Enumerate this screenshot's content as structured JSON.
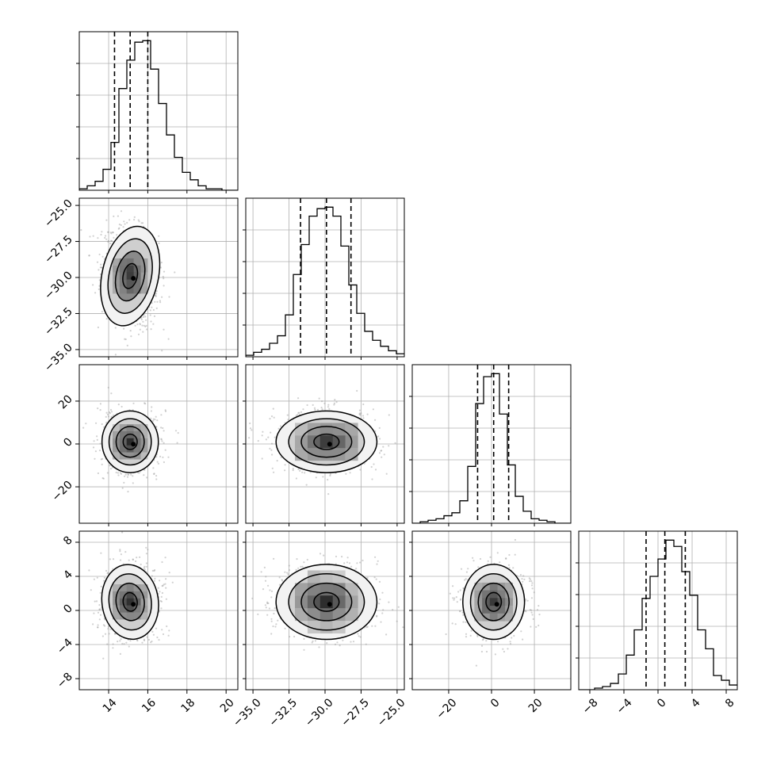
{
  "chart_data": {
    "type": "corner",
    "colors": {
      "line": "#000000",
      "grid": "#b0b0b0",
      "scatter": "#9a9a9a"
    },
    "parameters": [
      {
        "name": "",
        "range": [
          12.5,
          20.6
        ],
        "ticks": [
          14,
          16,
          18,
          20
        ],
        "tick_labels": [
          "14",
          "16",
          "18",
          "20"
        ],
        "quantiles": [
          14.3,
          15.1,
          16.0
        ],
        "mean": 15.1,
        "sd": 0.72,
        "hist": {
          "edges_start": 12.5,
          "bin_width": 0.405,
          "counts": [
            0.01,
            0.03,
            0.06,
            0.14,
            0.32,
            0.68,
            0.87,
            0.99,
            1.0,
            0.81,
            0.58,
            0.37,
            0.22,
            0.12,
            0.07,
            0.03,
            0.01,
            0.01,
            0.0,
            0.0
          ]
        }
      },
      {
        "name": "",
        "range": [
          -35.5,
          -24.5
        ],
        "ticks": [
          -35.0,
          -32.5,
          -30.0,
          -27.5,
          -25.0
        ],
        "tick_labels": [
          "−35.0",
          "−32.5",
          "−30.0",
          "−27.5",
          "−25.0"
        ],
        "quantiles": [
          -31.7,
          -29.9,
          -28.2
        ],
        "mean": -29.9,
        "sd": 1.75,
        "hist": {
          "edges_start": -35.5,
          "bin_width": 0.55,
          "counts": [
            0.01,
            0.03,
            0.05,
            0.09,
            0.14,
            0.28,
            0.55,
            0.75,
            0.94,
            0.99,
            1.0,
            0.94,
            0.74,
            0.48,
            0.29,
            0.17,
            0.11,
            0.07,
            0.04,
            0.02
          ]
        }
      },
      {
        "name": "",
        "range": [
          -37,
          37
        ],
        "ticks": [
          -20,
          0,
          20
        ],
        "tick_labels": [
          "−20",
          "0",
          "20"
        ],
        "quantiles": [
          -6.5,
          1.0,
          8.0
        ],
        "mean": 1.0,
        "sd": 7.2,
        "hist": {
          "edges_start": -37,
          "bin_width": 3.7,
          "counts": [
            0.0,
            0.01,
            0.02,
            0.03,
            0.05,
            0.07,
            0.15,
            0.38,
            0.8,
            0.98,
            1.0,
            0.73,
            0.39,
            0.18,
            0.08,
            0.03,
            0.02,
            0.01,
            0.0,
            0.0
          ]
        }
      },
      {
        "name": "",
        "range": [
          -9.3,
          9.3
        ],
        "ticks": [
          -8,
          -4,
          0,
          4,
          8
        ],
        "tick_labels": [
          "−8",
          "−4",
          "0",
          "4",
          "8"
        ],
        "quantiles": [
          -1.4,
          0.8,
          3.2
        ],
        "mean": 1.0,
        "sd": 2.2,
        "hist": {
          "edges_start": -9.3,
          "bin_width": 0.93,
          "counts": [
            0.0,
            0.0,
            0.01,
            0.02,
            0.04,
            0.1,
            0.22,
            0.38,
            0.58,
            0.72,
            0.83,
            0.95,
            0.91,
            0.75,
            0.6,
            0.38,
            0.26,
            0.09,
            0.06,
            0.03
          ]
        }
      }
    ],
    "correlations": [
      {
        "pair": [
          1,
          0
        ],
        "rho": -0.2
      },
      {
        "pair": [
          2,
          0
        ],
        "rho": 0.0
      },
      {
        "pair": [
          2,
          1
        ],
        "rho": 0.0
      },
      {
        "pair": [
          3,
          0
        ],
        "rho": 0.1
      },
      {
        "pair": [
          3,
          1
        ],
        "rho": 0.0
      },
      {
        "pair": [
          3,
          2
        ],
        "rho": 0.0
      }
    ],
    "grid": true,
    "contour_levels": [
      0.5,
      1.0,
      1.5,
      2.0
    ],
    "scatter_points_per_panel": 850
  }
}
